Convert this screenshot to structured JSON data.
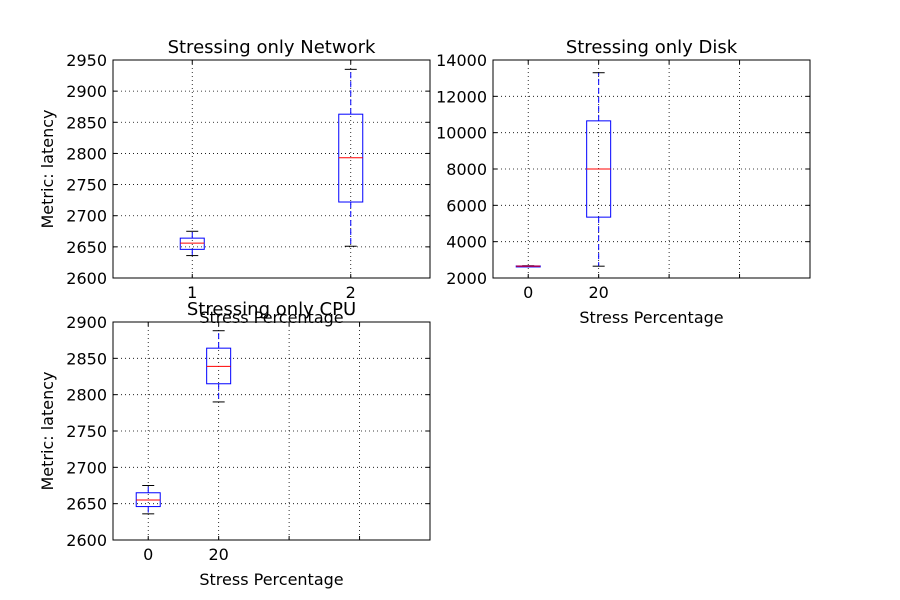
{
  "chart_data": [
    {
      "type": "box",
      "title": "Stressing only Network",
      "xlabel": "Stress Percentage",
      "ylabel": "Metric: latency",
      "ylim": [
        2600,
        2950
      ],
      "yticks": [
        2600,
        2650,
        2700,
        2750,
        2800,
        2850,
        2900,
        2950
      ],
      "xlim": [
        0.5,
        2.5
      ],
      "xticks": [
        1,
        2
      ],
      "xtick_labels": [
        "1",
        "2"
      ],
      "grid": true,
      "boxes": [
        {
          "x": 1,
          "whislo": 2636,
          "q1": 2646,
          "med": 2656,
          "q3": 2664,
          "whishi": 2675
        },
        {
          "x": 2,
          "whislo": 2651,
          "q1": 2722,
          "med": 2793,
          "q3": 2863,
          "whishi": 2935
        }
      ]
    },
    {
      "type": "box",
      "title": "Stressing only Disk",
      "xlabel": "Stress Percentage",
      "ylabel": "",
      "ylim": [
        2000,
        14000
      ],
      "yticks": [
        2000,
        4000,
        6000,
        8000,
        10000,
        12000,
        14000
      ],
      "xlim": [
        0.5,
        5.0
      ],
      "xticks": [
        1,
        2,
        3,
        4
      ],
      "xtick_labels": [
        "0",
        "20",
        "",
        ""
      ],
      "grid": true,
      "boxes": [
        {
          "x": 1,
          "whislo": 2636,
          "q1": 2646,
          "med": 2656,
          "q3": 2664,
          "whishi": 2675
        },
        {
          "x": 2,
          "whislo": 2650,
          "q1": 5350,
          "med": 8000,
          "q3": 10650,
          "whishi": 13300
        }
      ]
    },
    {
      "type": "box",
      "title": "Stressing only CPU",
      "xlabel": "Stress Percentage",
      "ylabel": "Metric: latency",
      "ylim": [
        2600,
        2900
      ],
      "yticks": [
        2600,
        2650,
        2700,
        2750,
        2800,
        2850,
        2900
      ],
      "xlim": [
        0.5,
        5.0
      ],
      "xticks": [
        1,
        2,
        3,
        4
      ],
      "xtick_labels": [
        "0",
        "20",
        "",
        ""
      ],
      "grid": true,
      "boxes": [
        {
          "x": 1,
          "whislo": 2636,
          "q1": 2646,
          "med": 2655,
          "q3": 2665,
          "whishi": 2675
        },
        {
          "x": 2,
          "whislo": 2790,
          "q1": 2815,
          "med": 2839,
          "q3": 2864,
          "whishi": 2888
        }
      ]
    }
  ],
  "colors": {
    "box": "#0000ff",
    "median": "#ff0000",
    "whisker": "#0000ff",
    "cap": "#000000",
    "grid": "#000000"
  }
}
